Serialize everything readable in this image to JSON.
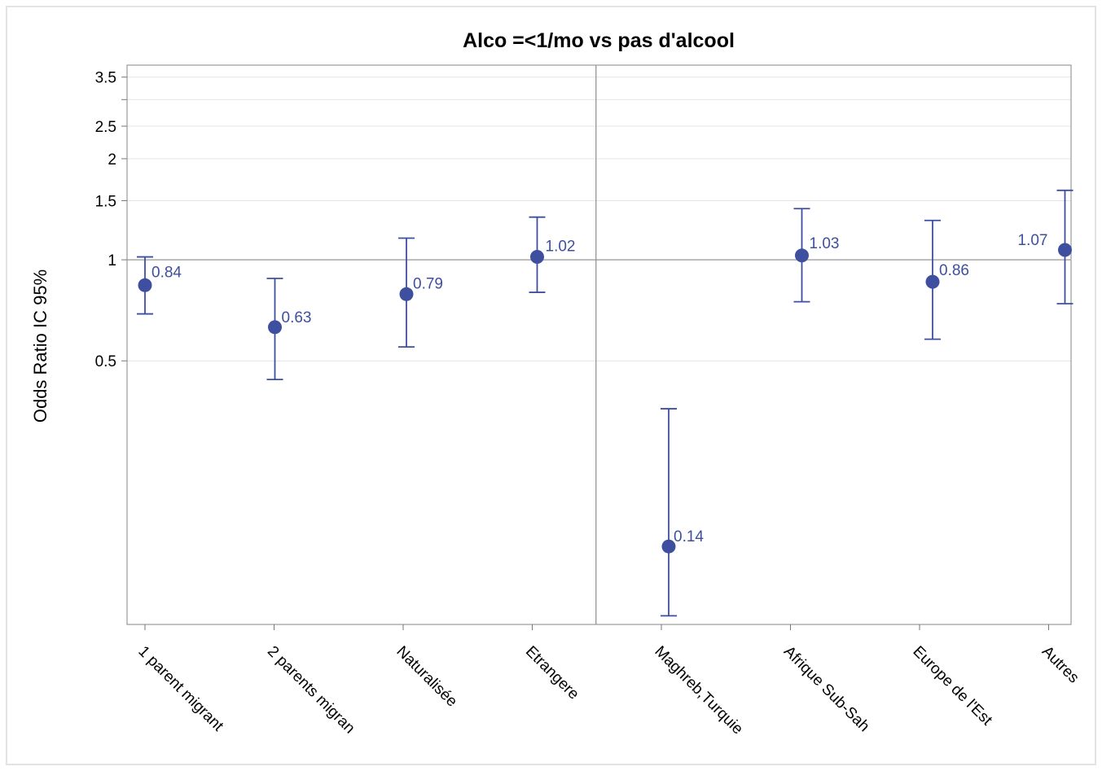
{
  "chart_data": {
    "type": "scatter",
    "title": "Alco =<1/mo vs pas d'alcool",
    "xlabel": "",
    "ylabel": "Odds Ratio IC 95%",
    "y_scale": "log",
    "ylim": [
      0.082,
      3.8
    ],
    "yticks": [
      0.5,
      1,
      1.5,
      2,
      2.5,
      3.5
    ],
    "grid": true,
    "reference_line": 1,
    "panel_divider_after_index": 3,
    "categories": [
      "1 parent migrant",
      "2 parents migran",
      "Naturalisée",
      "Etrangere",
      "Maghreb,Turquie",
      "Afrique Sub-Sah",
      "Europe de l'Est",
      "Autres"
    ],
    "series": [
      {
        "values": [
          0.84,
          0.63,
          0.79,
          1.02,
          0.14,
          1.03,
          0.86,
          1.07
        ],
        "lower": [
          0.69,
          0.44,
          0.55,
          0.8,
          0.087,
          0.75,
          0.58,
          0.74
        ],
        "upper": [
          1.02,
          0.88,
          1.16,
          1.34,
          0.36,
          1.42,
          1.31,
          1.61
        ],
        "labels": [
          "0.84",
          "0.63",
          "0.79",
          "1.02",
          "0.14",
          "1.03",
          "0.86",
          "1.07"
        ]
      }
    ],
    "colors": {
      "marker": "#3e4fa0",
      "label": "#3e4fa0",
      "axis": "#9a9a9a",
      "grid": "#e4e4e4",
      "reference": "#a8a8a8"
    }
  }
}
